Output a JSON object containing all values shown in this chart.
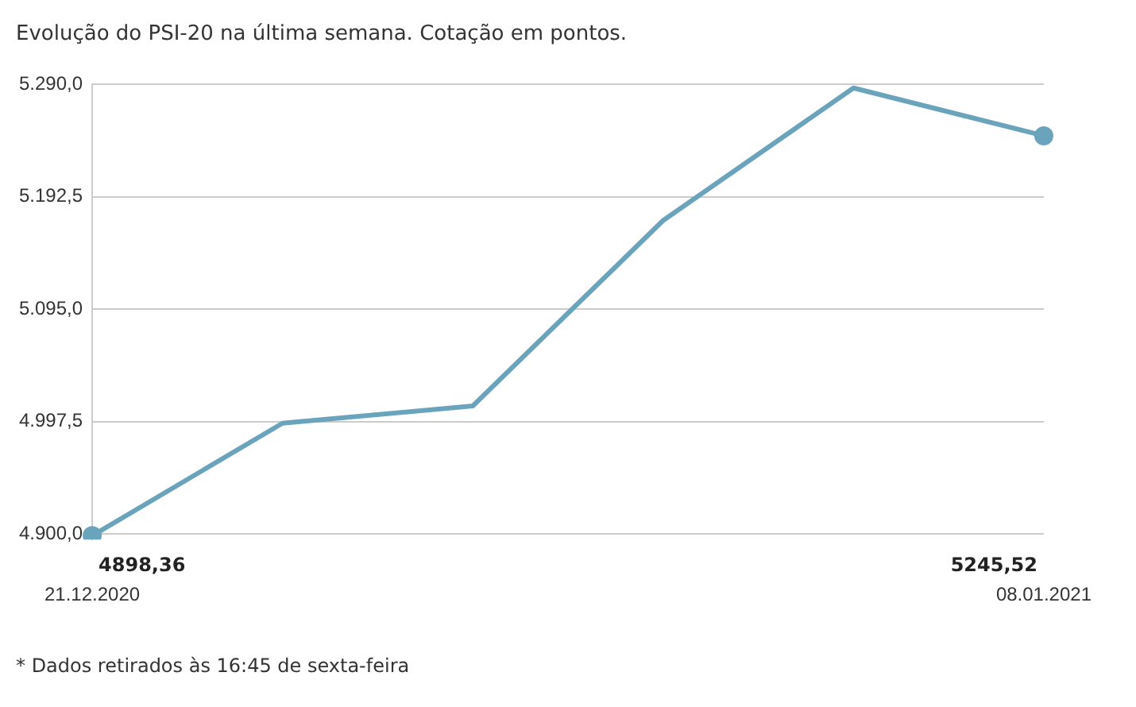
{
  "chart_data": {
    "type": "line",
    "title": "Evolução do PSI-20 na última semana. Cotação em pontos.",
    "categories": [
      "21.12.2020",
      null,
      null,
      null,
      null,
      "08.01.2021"
    ],
    "series": [
      {
        "color": "#6aa3bc",
        "values": [
          4898.36,
          4996,
          5011,
          5172,
          5287,
          5245.52
        ],
        "value_labels": [
          "4898,36",
          null,
          null,
          null,
          null,
          "5245,52"
        ]
      }
    ],
    "ylim": [
      4895,
      5290
    ],
    "yticks": [
      {
        "value": 4900,
        "label": "4.900,0"
      },
      {
        "value": 4997.5,
        "label": "4.997,5"
      },
      {
        "value": 5095,
        "label": "5.095,0"
      },
      {
        "value": 5192.5,
        "label": "5.192,5"
      },
      {
        "value": 5290,
        "label": "5.290,0"
      }
    ],
    "grid": "y",
    "legend": false,
    "annotations": [
      "* Dados retirados às 16:45 de sexta-feira"
    ]
  }
}
